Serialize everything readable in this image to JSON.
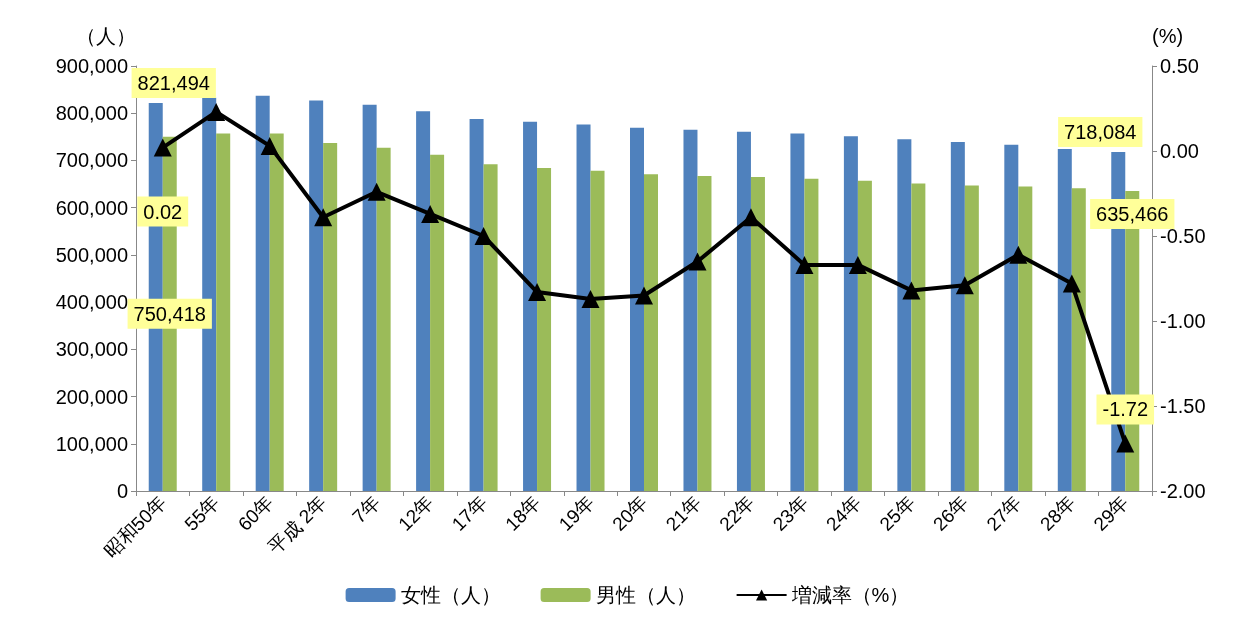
{
  "chart_data": {
    "type": "bar",
    "ylabel": "（人）",
    "y2label": "(%)",
    "categories": [
      "昭和50年",
      "55年",
      "60年",
      "平成 2年",
      "7年",
      "12年",
      "17年",
      "18年",
      "19年",
      "20年",
      "21年",
      "22年",
      "23年",
      "24年",
      "25年",
      "26年",
      "27年",
      "28年",
      "29年"
    ],
    "series": [
      {
        "name": "女性（人）",
        "color": "#4f81bd",
        "values": [
          821494,
          833000,
          837000,
          827000,
          818000,
          804000,
          788000,
          782000,
          776000,
          769000,
          765000,
          761000,
          757000,
          751000,
          745000,
          739000,
          733000,
          724000,
          718084
        ],
        "value_labels": [
          "821,494",
          null,
          null,
          null,
          null,
          null,
          null,
          null,
          null,
          null,
          null,
          null,
          null,
          null,
          null,
          null,
          null,
          null,
          "718,084"
        ]
      },
      {
        "name": "男性（人）",
        "color": "#9bbb59",
        "values": [
          750418,
          757000,
          757000,
          737000,
          727000,
          712000,
          692000,
          684000,
          678000,
          671000,
          667000,
          665000,
          661000,
          657000,
          651000,
          647000,
          645000,
          641000,
          635466
        ],
        "value_labels": [
          "750,418",
          null,
          null,
          null,
          null,
          null,
          null,
          null,
          null,
          null,
          null,
          null,
          null,
          null,
          null,
          null,
          null,
          null,
          "635,466"
        ]
      },
      {
        "name": "増減率（%）",
        "type": "line",
        "axis": "y2",
        "color": "#000000",
        "marker": "triangle",
        "values": [
          0.02,
          0.23,
          0.03,
          -0.39,
          -0.24,
          -0.37,
          -0.5,
          -0.83,
          -0.87,
          -0.85,
          -0.65,
          -0.39,
          -0.67,
          -0.67,
          -0.82,
          -0.79,
          -0.61,
          -0.78,
          -1.72
        ],
        "value_labels": [
          "0.02",
          null,
          null,
          null,
          null,
          null,
          null,
          null,
          null,
          null,
          null,
          null,
          null,
          null,
          null,
          null,
          null,
          null,
          "-1.72"
        ]
      }
    ],
    "ylim": [
      0,
      900000
    ],
    "yticks": [
      0,
      {
        "value": 100000,
        "label": "100,000"
      },
      {
        "value": 200000,
        "label": "200,000"
      },
      {
        "value": 300000,
        "label": "300,000"
      },
      {
        "value": 400000,
        "label": "400,000"
      },
      {
        "value": 500000,
        "label": "500,000"
      },
      {
        "value": 600000,
        "label": "600,000"
      },
      {
        "value": 700000,
        "label": "700,000"
      },
      {
        "value": 800000,
        "label": "800,000"
      },
      {
        "value": 900000,
        "label": "900,000"
      }
    ],
    "y2lim": [
      -2,
      0.5
    ],
    "y2ticks": [
      {
        "value": -2,
        "label": "-2.00"
      },
      {
        "value": -1.5,
        "label": "-1.50"
      },
      {
        "value": -1,
        "label": "-1.00"
      },
      {
        "value": -0.5,
        "label": "-0.50"
      },
      {
        "value": 0,
        "label": "0.00"
      },
      {
        "value": 0.5,
        "label": "0.50"
      }
    ],
    "grid": false,
    "legend": "bottom"
  }
}
